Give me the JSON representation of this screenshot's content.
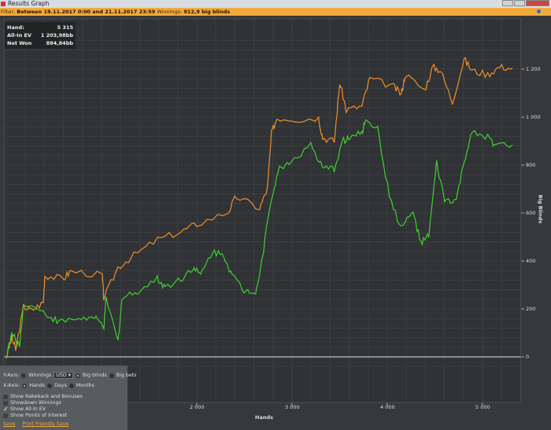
{
  "window": {
    "title": "Results Graph"
  },
  "filter": {
    "label": "Filter:",
    "range": "Between 19.11.2017 0:00 and 21.11.2017 23:59",
    "winnings_label": "Winnings:",
    "winnings_value": "912,9 big blinds"
  },
  "stats": [
    {
      "label": "Hand:",
      "value": "5 315"
    },
    {
      "label": "All-In EV",
      "value": "1 203,98bb"
    },
    {
      "label": "Net Won",
      "value": "884,84bb"
    }
  ],
  "controls": {
    "y_axis_label": "Y-Axis:",
    "y_options": [
      {
        "label": "Winnings",
        "selected": false
      },
      {
        "label": "Big blinds",
        "selected": true
      },
      {
        "label": "Big bets",
        "selected": false
      }
    ],
    "currency": "USD",
    "x_axis_label": "X-Axis:",
    "x_options": [
      {
        "label": "Hands",
        "selected": true
      },
      {
        "label": "Days",
        "selected": false
      },
      {
        "label": "Months",
        "selected": false
      }
    ],
    "checkboxes": [
      {
        "label": "Show Rakeback and Bonuses",
        "checked": false
      },
      {
        "label": "Showdown Winnings",
        "checked": false
      },
      {
        "label": "Show All-In EV",
        "checked": true
      },
      {
        "label": "Show Points of Interest",
        "checked": false
      }
    ],
    "save": "Save",
    "print_save": "Print Friendly Save"
  },
  "chart_data": {
    "type": "line",
    "xlabel": "Hands",
    "ylabel": "Big Blinds",
    "xlim": [
      0,
      5315
    ],
    "ylim": [
      -50,
      1350
    ],
    "x_ticks": [
      "2 000",
      "3 000",
      "4 000",
      "5 000"
    ],
    "x_tick_values": [
      2000,
      3000,
      4000,
      5000
    ],
    "y_ticks": [
      "0",
      "200",
      "400",
      "600",
      "800",
      "1 000",
      "1 200"
    ],
    "y_tick_values": [
      0,
      200,
      400,
      600,
      800,
      1000,
      1200
    ],
    "grid": true,
    "series": [
      {
        "color": "#f0902a",
        "points": [
          [
            0,
            0
          ],
          [
            58,
            79
          ],
          [
            99,
            30
          ],
          [
            182,
            210
          ],
          [
            264,
            194
          ],
          [
            388,
            226
          ],
          [
            405,
            341
          ],
          [
            595,
            325
          ],
          [
            677,
            358
          ],
          [
            1008,
            341
          ],
          [
            1024,
            243
          ],
          [
            1173,
            374
          ],
          [
            1338,
            423
          ],
          [
            1586,
            489
          ],
          [
            1834,
            522
          ],
          [
            1999,
            554
          ],
          [
            2329,
            604
          ],
          [
            2412,
            669
          ],
          [
            2660,
            620
          ],
          [
            2742,
            702
          ],
          [
            2784,
            932
          ],
          [
            2841,
            997
          ],
          [
            3073,
            991
          ],
          [
            3279,
            997
          ],
          [
            3321,
            915
          ],
          [
            3444,
            899
          ],
          [
            3502,
            1145
          ],
          [
            3568,
            1030
          ],
          [
            3734,
            1046
          ],
          [
            3816,
            1161
          ],
          [
            4064,
            1128
          ],
          [
            4147,
            1096
          ],
          [
            4188,
            1178
          ],
          [
            4394,
            1112
          ],
          [
            4477,
            1210
          ],
          [
            4560,
            1194
          ],
          [
            4684,
            1063
          ],
          [
            4807,
            1243
          ],
          [
            4890,
            1194
          ],
          [
            5055,
            1178
          ],
          [
            5179,
            1210
          ],
          [
            5315,
            1204
          ]
        ]
      },
      {
        "color": "#3ed12e",
        "points": [
          [
            0,
            0
          ],
          [
            58,
            95
          ],
          [
            140,
            46
          ],
          [
            182,
            226
          ],
          [
            429,
            177
          ],
          [
            553,
            144
          ],
          [
            760,
            161
          ],
          [
            925,
            161
          ],
          [
            1024,
            128
          ],
          [
            1049,
            243
          ],
          [
            1173,
            62
          ],
          [
            1214,
            243
          ],
          [
            1379,
            276
          ],
          [
            1586,
            325
          ],
          [
            1669,
            292
          ],
          [
            1834,
            325
          ],
          [
            1958,
            374
          ],
          [
            2040,
            341
          ],
          [
            2164,
            440
          ],
          [
            2288,
            423
          ],
          [
            2370,
            341
          ],
          [
            2494,
            276
          ],
          [
            2618,
            276
          ],
          [
            2660,
            341
          ],
          [
            2784,
            669
          ],
          [
            2867,
            784
          ],
          [
            2991,
            817
          ],
          [
            3197,
            883
          ],
          [
            3321,
            784
          ],
          [
            3444,
            784
          ],
          [
            3527,
            899
          ],
          [
            3610,
            915
          ],
          [
            3734,
            932
          ],
          [
            3775,
            997
          ],
          [
            3899,
            948
          ],
          [
            4023,
            669
          ],
          [
            4147,
            538
          ],
          [
            4271,
            604
          ],
          [
            4353,
            472
          ],
          [
            4436,
            505
          ],
          [
            4518,
            807
          ],
          [
            4601,
            653
          ],
          [
            4725,
            653
          ],
          [
            4807,
            817
          ],
          [
            4890,
            932
          ],
          [
            5055,
            915
          ],
          [
            5138,
            883
          ],
          [
            5315,
            885
          ]
        ]
      }
    ]
  }
}
